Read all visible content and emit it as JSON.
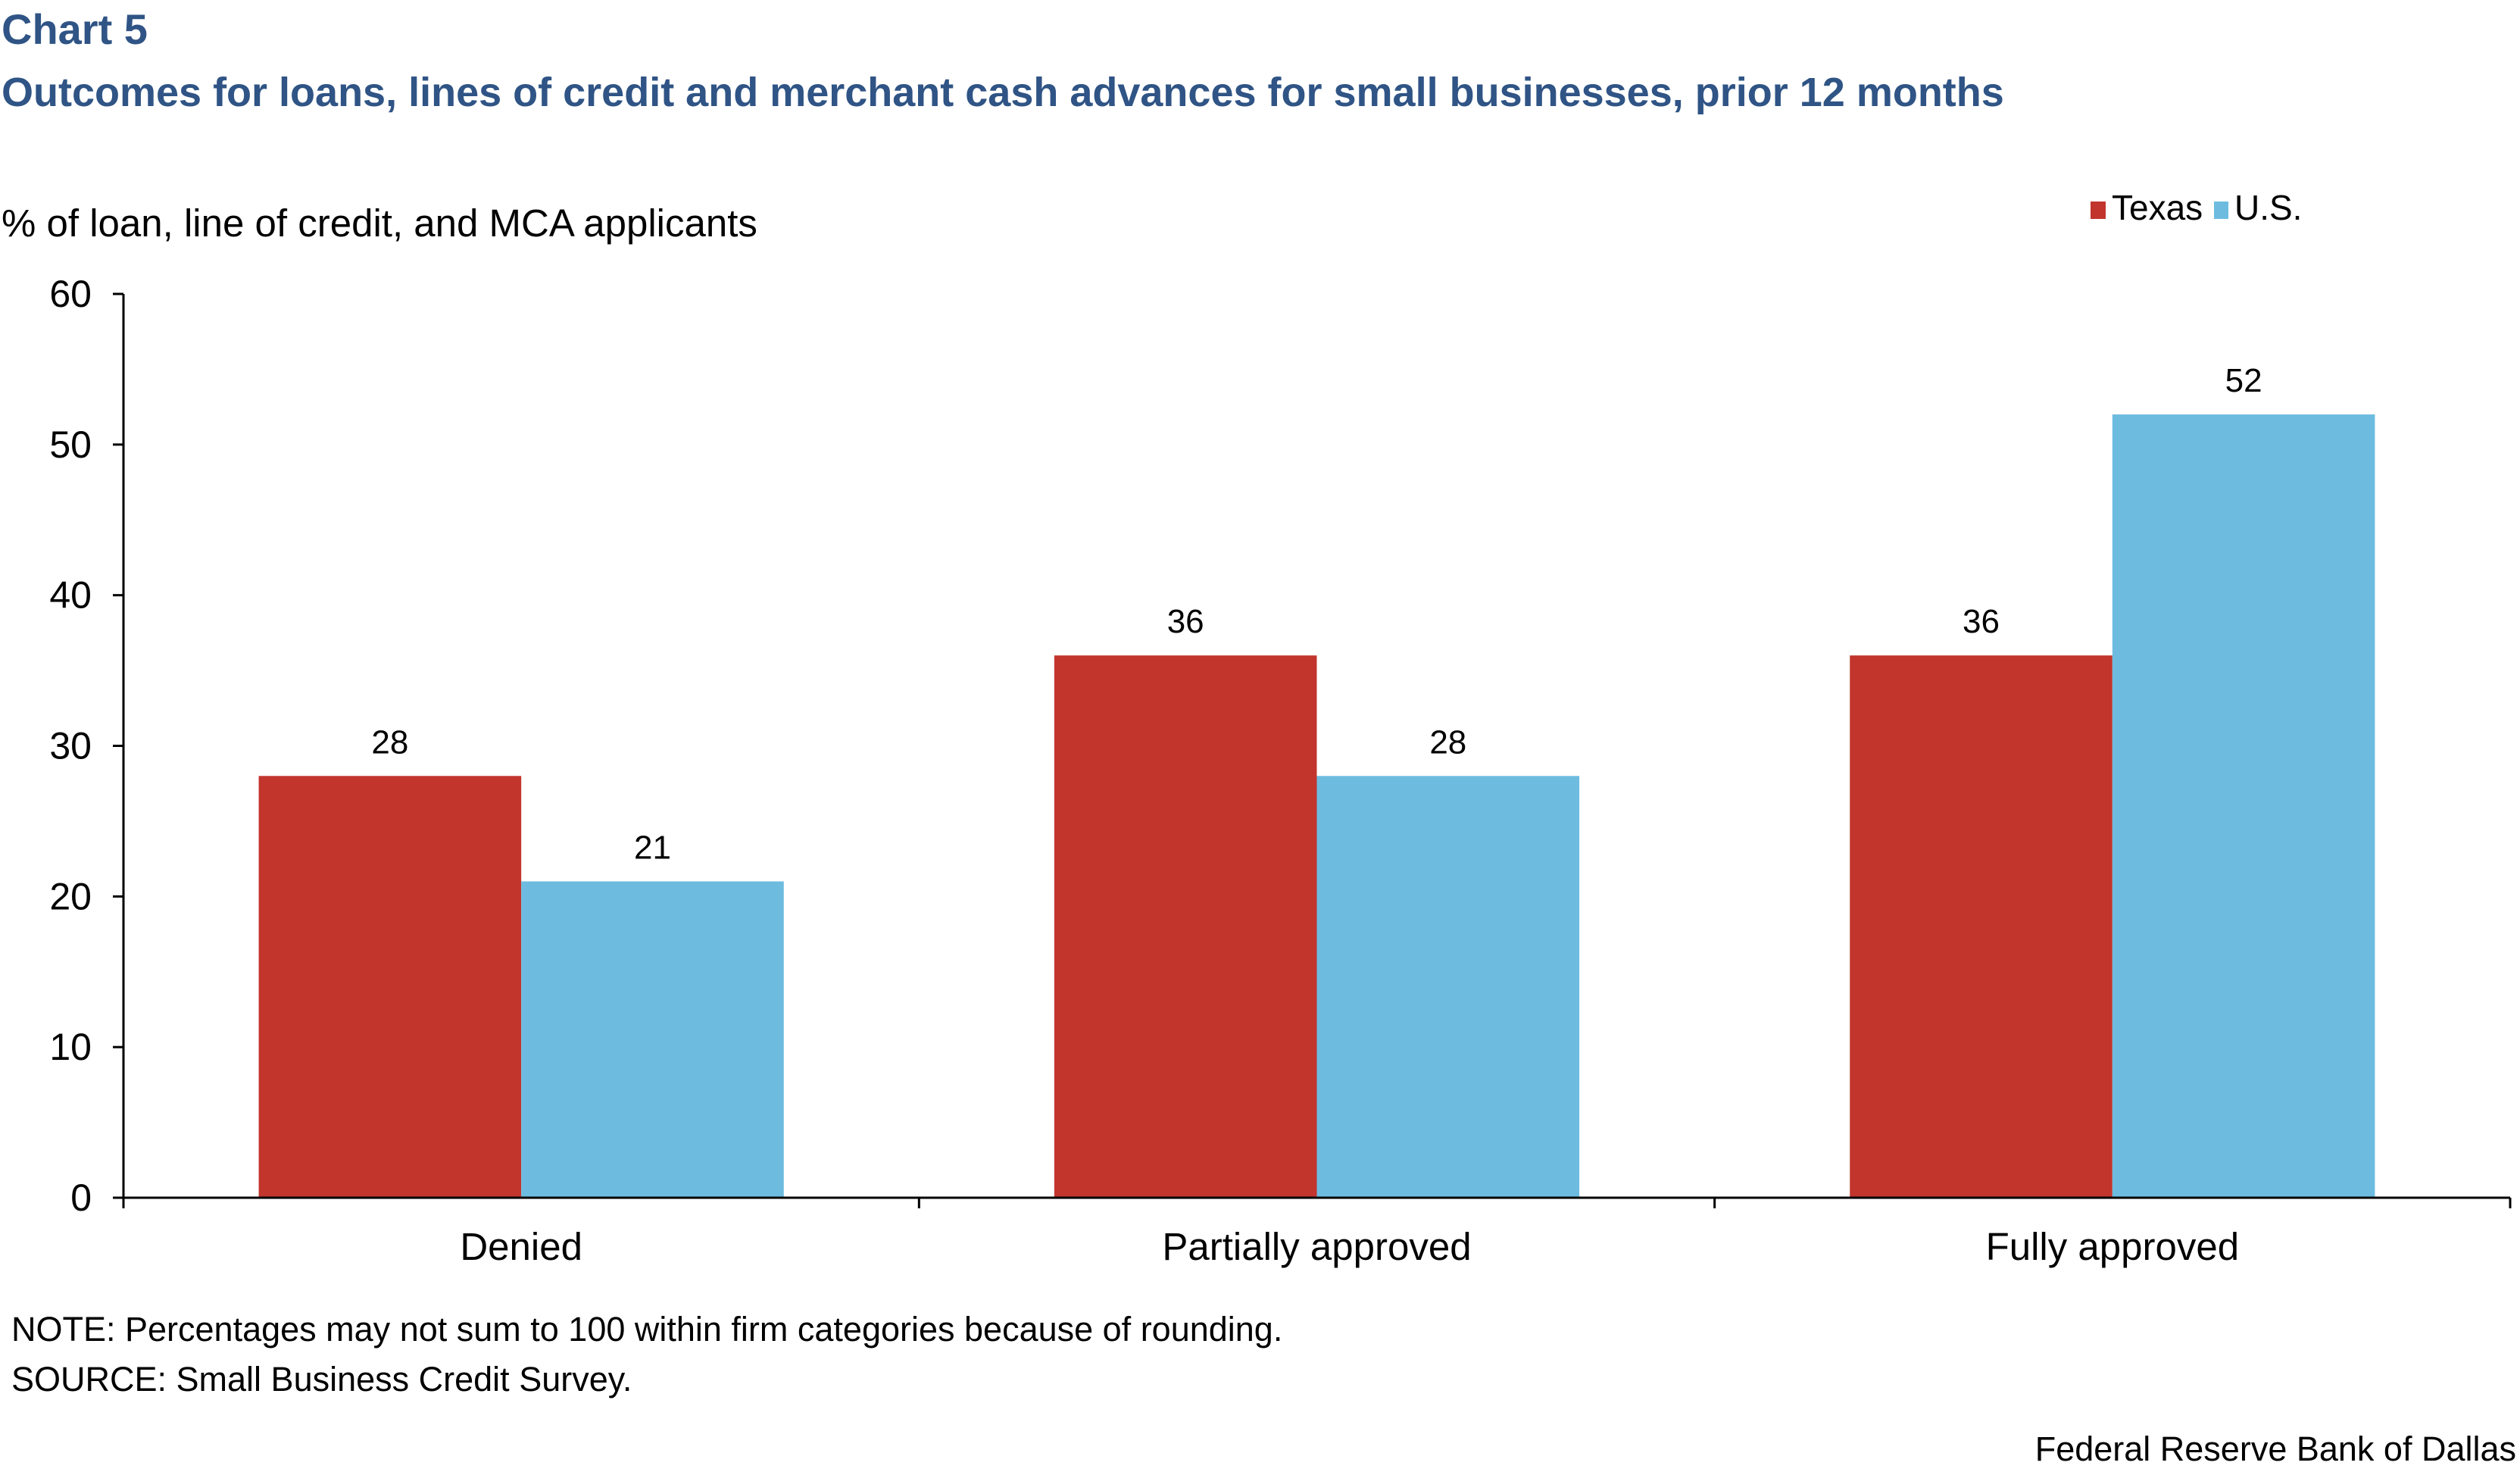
{
  "header": {
    "chart_number": "Chart 5",
    "title": "Outcomes for loans, lines of credit and merchant cash advances for small businesses, prior 12 months"
  },
  "colors": {
    "title": "#2F5485",
    "texas": "#C1352D",
    "us": "#6DBCE0",
    "axis": "#000000"
  },
  "chart_data": {
    "type": "bar",
    "ylabel": "% of loan, line of credit, and MCA applicants",
    "xlabel": "",
    "categories": [
      "Denied",
      "Partially approved",
      "Fully approved"
    ],
    "ylim": [
      0,
      60
    ],
    "yticks": [
      0,
      10,
      20,
      30,
      40,
      50,
      60
    ],
    "grid": false,
    "legend_position": "top-right",
    "series": [
      {
        "name": "Texas",
        "values": [
          28,
          36,
          36
        ]
      },
      {
        "name": "U.S.",
        "values": [
          21,
          28,
          52
        ]
      }
    ],
    "data_labels": true
  },
  "footer": {
    "note": "NOTE: Percentages may not sum to 100 within firm categories because of rounding.",
    "source": "SOURCE: Small Business Credit Survey.",
    "credit": "Federal Reserve Bank of Dallas"
  }
}
